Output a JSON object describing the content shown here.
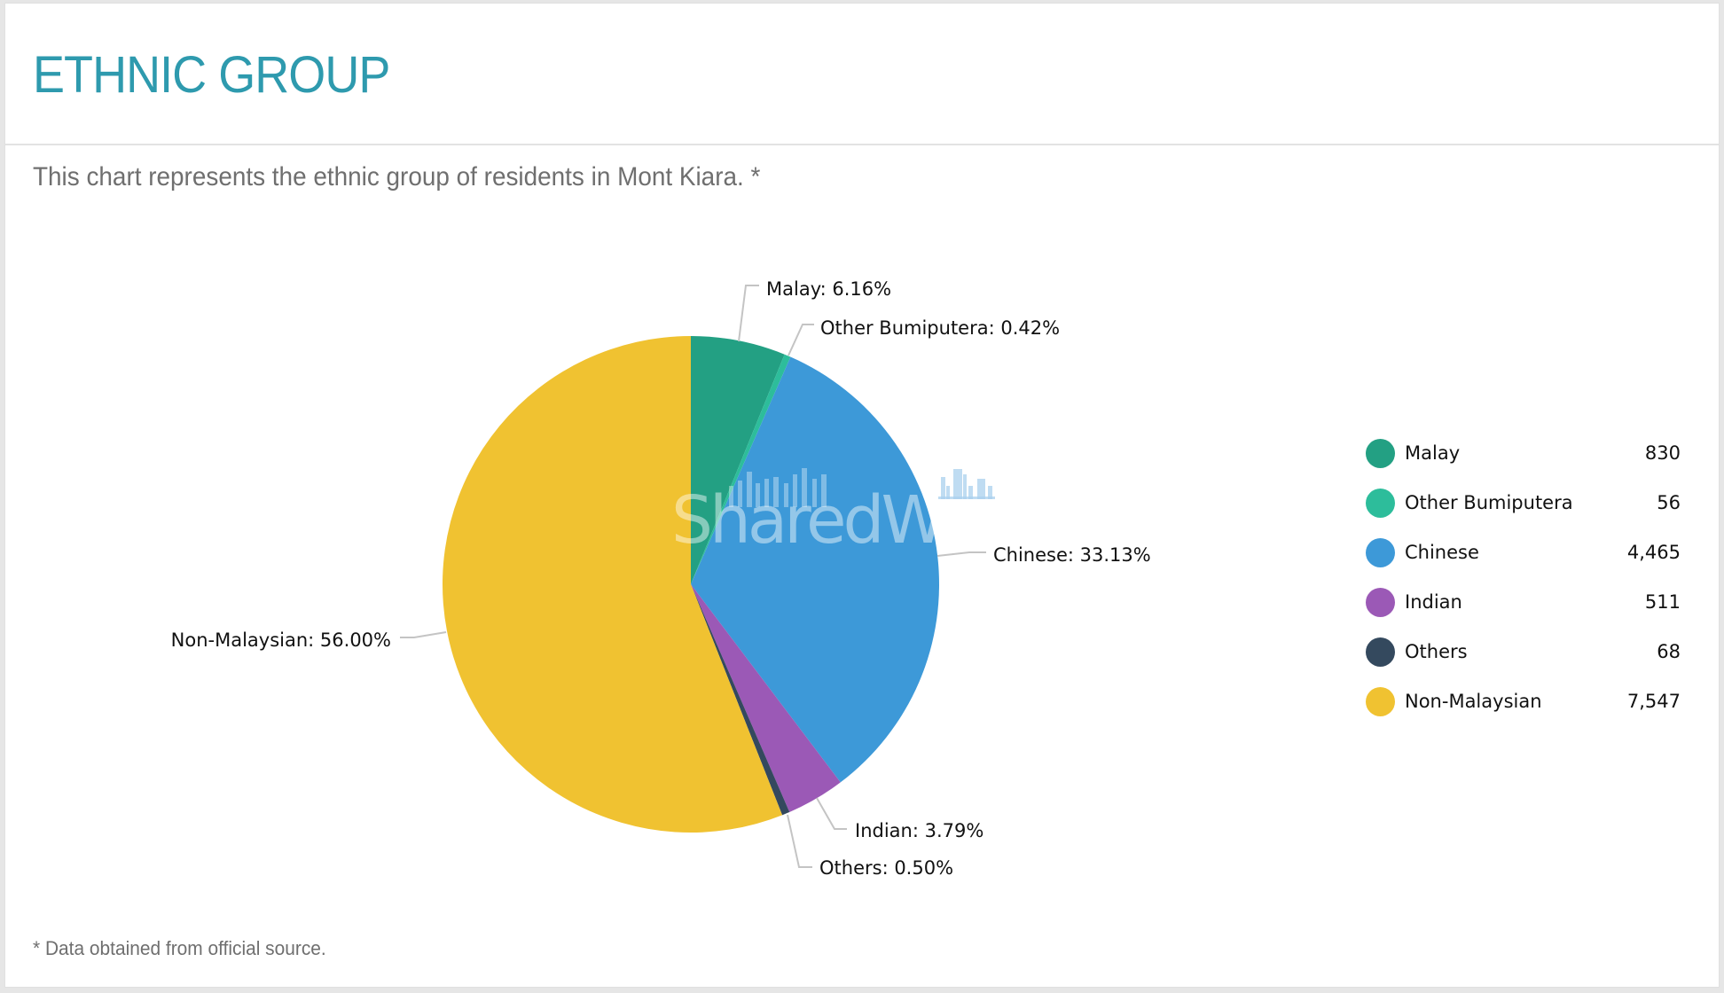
{
  "header": {
    "title": "ETHNIC GROUP"
  },
  "body": {
    "subtitle": "This chart represents the ethnic group of residents in Mont Kiara. *",
    "footnote": "* Data obtained from official source."
  },
  "watermark": {
    "text": "SharedW",
    "icon": "bar-chart-logo-icon"
  },
  "colors": {
    "title": "#2e9aae",
    "text_muted": "#6f6f6f",
    "connector": "#c4c4c4"
  },
  "legend": {
    "items": [
      {
        "label": "Malay",
        "value": "830",
        "color": "#23a083"
      },
      {
        "label": "Other Bumiputera",
        "value": "56",
        "color": "#2dbd9b"
      },
      {
        "label": "Chinese",
        "value": "4,465",
        "color": "#3d99d8"
      },
      {
        "label": "Indian",
        "value": "511",
        "color": "#9b59b6"
      },
      {
        "label": "Others",
        "value": "68",
        "color": "#34495e"
      },
      {
        "label": "Non-Malaysian",
        "value": "7,547",
        "color": "#f0c231"
      }
    ]
  },
  "chart_data": {
    "type": "pie",
    "title": "ETHNIC GROUP",
    "subtitle": "This chart represents the ethnic group of residents in Mont Kiara. *",
    "categories": [
      "Malay",
      "Other Bumiputera",
      "Chinese",
      "Indian",
      "Others",
      "Non-Malaysian"
    ],
    "values": [
      830,
      56,
      4465,
      511,
      68,
      7547
    ],
    "percentages": [
      6.16,
      0.42,
      33.13,
      3.79,
      0.5,
      56.0
    ],
    "data_labels": [
      "Malay: 6.16%",
      "Other Bumiputera: 0.42%",
      "Chinese: 33.13%",
      "Indian: 3.79%",
      "Others: 0.50%",
      "Non-Malaysian: 56.00%"
    ],
    "colors": [
      "#23a083",
      "#2dbd9b",
      "#3d99d8",
      "#9b59b6",
      "#34495e",
      "#f0c231"
    ],
    "start_angle": "12 o'clock, clockwise",
    "legend_position": "right"
  }
}
